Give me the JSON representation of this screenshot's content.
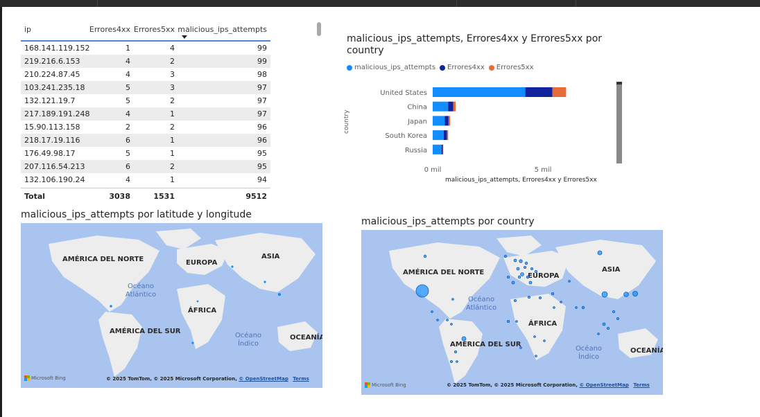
{
  "table": {
    "headers": {
      "ip": "ip",
      "e4": "Errores4xx",
      "e5": "Errores5xx",
      "mal": "malicious_ips_attempts"
    },
    "rows": [
      {
        "ip": "168.141.119.152",
        "e4": "1",
        "e5": "4",
        "mal": "99"
      },
      {
        "ip": "219.216.6.153",
        "e4": "4",
        "e5": "2",
        "mal": "99"
      },
      {
        "ip": "210.224.87.45",
        "e4": "4",
        "e5": "3",
        "mal": "98"
      },
      {
        "ip": "103.241.235.18",
        "e4": "5",
        "e5": "3",
        "mal": "97"
      },
      {
        "ip": "132.121.19.7",
        "e4": "5",
        "e5": "2",
        "mal": "97"
      },
      {
        "ip": "217.189.191.248",
        "e4": "4",
        "e5": "1",
        "mal": "97"
      },
      {
        "ip": "15.90.113.158",
        "e4": "2",
        "e5": "2",
        "mal": "96"
      },
      {
        "ip": "218.17.19.116",
        "e4": "6",
        "e5": "1",
        "mal": "96"
      },
      {
        "ip": "176.49.98.17",
        "e4": "5",
        "e5": "1",
        "mal": "95"
      },
      {
        "ip": "207.116.54.213",
        "e4": "6",
        "e5": "2",
        "mal": "95"
      },
      {
        "ip": "132.106.190.24",
        "e4": "4",
        "e5": "1",
        "mal": "94"
      }
    ],
    "total": {
      "label": "Total",
      "e4": "3038",
      "e5": "1531",
      "mal": "9512"
    }
  },
  "bar_chart": {
    "title": "malicious_ips_attempts, Errores4xx y Errores5xx por country",
    "legend": [
      "malicious_ips_attempts",
      "Errores4xx",
      "Errores5xx"
    ],
    "ylabel": "country",
    "xlabel": "malicious_ips_attempts, Errores4xx y Errores5xx",
    "ticks": [
      "0 mil",
      "5 mil"
    ]
  },
  "chart_data": {
    "type": "bar",
    "orientation": "horizontal",
    "stacked": true,
    "title": "malicious_ips_attempts, Errores4xx y Errores5xx por country",
    "categories": [
      "United States",
      "China",
      "Japan",
      "South Korea",
      "Russia"
    ],
    "series": [
      {
        "name": "malicious_ips_attempts",
        "color": "#118dff",
        "values": [
          4200,
          700,
          550,
          500,
          400
        ]
      },
      {
        "name": "Errores4xx",
        "color": "#12239e",
        "values": [
          1230,
          230,
          170,
          150,
          60
        ]
      },
      {
        "name": "Errores5xx",
        "color": "#e66c37",
        "values": [
          620,
          110,
          70,
          50,
          20
        ]
      }
    ],
    "xlim": [
      0,
      8000
    ],
    "xlabel": "malicious_ips_attempts, Errores4xx y Errores5xx",
    "ylabel": "country",
    "legend_position": "top-left",
    "grid": false
  },
  "map1": {
    "title": "malicious_ips_attempts por latitude y longitude",
    "labels": {
      "na": "AMÉRICA DEL NORTE",
      "eu": "EUROPA",
      "asia": "ASIA",
      "af": "ÁFRICA",
      "sa": "AMÉRICA DEL SUR",
      "oc": "OCEANÍA"
    },
    "oceans": {
      "atl": "Océano Atlántico",
      "ind": "Océano Índico"
    },
    "bing": "Microsoft Bing",
    "copyright": "© 2025 TomTom, © 2025 Microsoft Corporation,",
    "osm": "© OpenStreetMap",
    "terms": "Terms"
  },
  "map2": {
    "title": "malicious_ips_attempts por country",
    "labels": {
      "na": "AMÉRICA DEL NORTE",
      "eu": "EUROPA",
      "asia": "ASIA",
      "af": "ÁFRICA",
      "sa": "AMÉRICA DEL SUR",
      "oc": "OCEANÍA"
    },
    "oceans": {
      "atl": "Océano Atlántico",
      "ind": "Océano Índico"
    },
    "bing": "Microsoft Bing",
    "copyright": "© 2025 TomTom, © 2025 Microsoft Corporation,",
    "osm": "© OpenStreetMap",
    "terms": "Terms"
  },
  "colors": {
    "series1": "#118dff",
    "series2": "#12239e",
    "series3": "#e66c37",
    "ocean": "#a9c4ee",
    "land": "#ededed"
  }
}
